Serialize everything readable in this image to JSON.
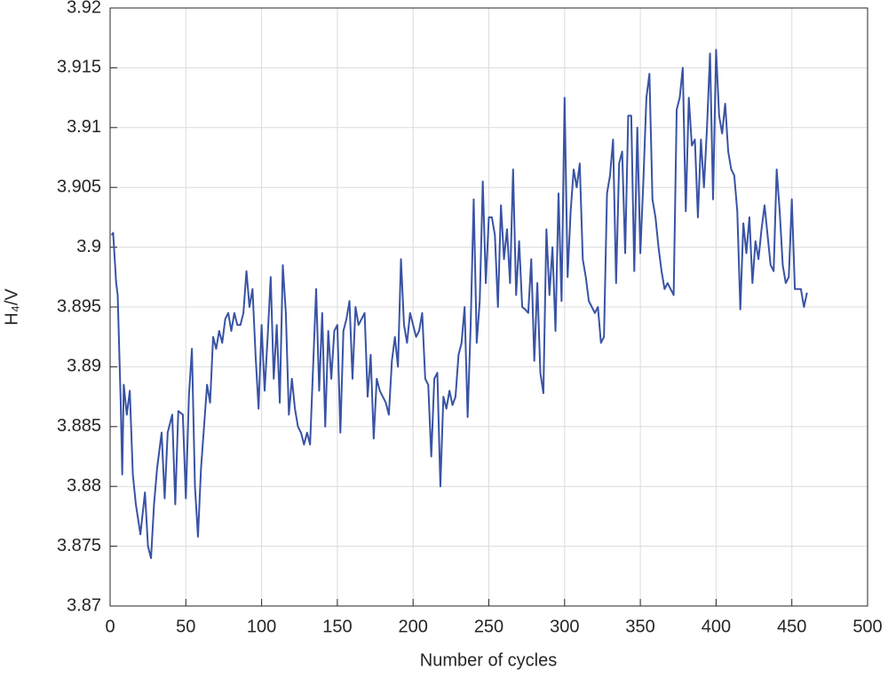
{
  "chart_data": {
    "type": "line",
    "xlabel": "Number of cycles",
    "ylabel": "H₄/V",
    "xlim": [
      0,
      500
    ],
    "xticks": [
      0,
      50,
      100,
      150,
      200,
      250,
      300,
      350,
      400,
      450,
      500
    ],
    "ylim": [
      3.87,
      3.92
    ],
    "yticks": [
      3.87,
      3.875,
      3.88,
      3.885,
      3.89,
      3.895,
      3.9,
      3.905,
      3.91,
      3.915,
      3.92
    ],
    "grid": true,
    "series": [
      {
        "color": "#3953a4",
        "x": [
          1,
          2,
          4,
          5,
          7,
          8,
          9,
          11,
          13,
          15,
          17,
          20,
          23,
          25,
          27,
          29,
          31,
          34,
          36,
          38,
          41,
          43,
          45,
          48,
          50,
          52,
          54,
          56,
          58,
          60,
          62,
          64,
          66,
          68,
          70,
          72,
          74,
          76,
          78,
          80,
          82,
          84,
          86,
          88,
          90,
          92,
          94,
          96,
          98,
          100,
          102,
          104,
          106,
          108,
          110,
          112,
          114,
          116,
          118,
          120,
          122,
          124,
          126,
          128,
          130,
          132,
          134,
          136,
          138,
          140,
          142,
          144,
          146,
          148,
          150,
          152,
          154,
          156,
          158,
          160,
          162,
          164,
          166,
          168,
          170,
          172,
          174,
          176,
          178,
          180,
          182,
          184,
          186,
          188,
          190,
          192,
          194,
          196,
          198,
          200,
          202,
          204,
          206,
          208,
          210,
          212,
          214,
          216,
          218,
          220,
          222,
          224,
          226,
          228,
          230,
          232,
          234,
          236,
          238,
          240,
          242,
          244,
          246,
          248,
          250,
          252,
          254,
          256,
          258,
          260,
          262,
          264,
          266,
          268,
          270,
          272,
          274,
          276,
          278,
          280,
          282,
          284,
          286,
          288,
          290,
          292,
          294,
          296,
          298,
          300,
          302,
          304,
          306,
          308,
          310,
          312,
          314,
          316,
          318,
          320,
          322,
          324,
          326,
          328,
          330,
          332,
          334,
          336,
          338,
          340,
          342,
          344,
          346,
          348,
          350,
          352,
          354,
          356,
          358,
          360,
          362,
          364,
          366,
          368,
          370,
          372,
          374,
          376,
          378,
          380,
          382,
          384,
          386,
          388,
          390,
          392,
          394,
          396,
          398,
          400,
          402,
          404,
          406,
          408,
          410,
          412,
          414,
          416,
          418,
          420,
          422,
          424,
          426,
          428,
          430,
          432,
          434,
          436,
          438,
          440,
          442,
          444,
          446,
          448,
          450,
          452,
          454,
          456,
          458,
          460
        ],
        "values": [
          3.901,
          3.9012,
          3.897,
          3.896,
          3.887,
          3.881,
          3.8885,
          3.886,
          3.888,
          3.881,
          3.8785,
          3.876,
          3.8795,
          3.875,
          3.874,
          3.8785,
          3.8815,
          3.8845,
          3.879,
          3.8845,
          3.886,
          3.8785,
          3.8863,
          3.886,
          3.879,
          3.8875,
          3.8915,
          3.88,
          3.8758,
          3.8815,
          3.885,
          3.8885,
          3.887,
          3.8925,
          3.8915,
          3.893,
          3.892,
          3.894,
          3.8945,
          3.893,
          3.8945,
          3.8935,
          3.8935,
          3.8945,
          3.898,
          3.895,
          3.8965,
          3.891,
          3.8865,
          3.8935,
          3.888,
          3.8925,
          3.8975,
          3.889,
          3.8935,
          3.887,
          3.8985,
          3.8945,
          3.886,
          3.889,
          3.8865,
          3.885,
          3.8845,
          3.8835,
          3.8845,
          3.8835,
          3.89,
          3.8965,
          3.888,
          3.8945,
          3.885,
          3.893,
          3.889,
          3.893,
          3.8935,
          3.8845,
          3.893,
          3.894,
          3.8955,
          3.889,
          3.895,
          3.8935,
          3.894,
          3.8945,
          3.8875,
          3.891,
          3.884,
          3.889,
          3.888,
          3.8875,
          3.887,
          3.886,
          3.8905,
          3.8925,
          3.89,
          3.899,
          3.8935,
          3.892,
          3.8945,
          3.8935,
          3.8925,
          3.893,
          3.8945,
          3.889,
          3.8885,
          3.8825,
          3.889,
          3.8895,
          3.88,
          3.8875,
          3.8865,
          3.888,
          3.8868,
          3.8875,
          3.891,
          3.892,
          3.895,
          3.8858,
          3.8935,
          3.904,
          3.892,
          3.8955,
          3.9055,
          3.897,
          3.9025,
          3.9025,
          3.901,
          3.895,
          3.9035,
          3.899,
          3.9015,
          3.897,
          3.9065,
          3.896,
          3.9005,
          3.895,
          3.8948,
          3.8945,
          3.899,
          3.8905,
          3.897,
          3.8895,
          3.8878,
          3.9015,
          3.896,
          3.9,
          3.893,
          3.9045,
          3.8955,
          3.9125,
          3.8975,
          3.903,
          3.9065,
          3.905,
          3.907,
          3.899,
          3.8975,
          3.8955,
          3.895,
          3.8945,
          3.895,
          3.892,
          3.8925,
          3.9045,
          3.906,
          3.909,
          3.897,
          3.907,
          3.908,
          3.8995,
          3.911,
          3.911,
          3.898,
          3.91,
          3.8995,
          3.9055,
          3.9125,
          3.9145,
          3.904,
          3.9025,
          3.9,
          3.898,
          3.8965,
          3.897,
          3.8965,
          3.896,
          3.9115,
          3.9125,
          3.915,
          3.903,
          3.9125,
          3.9085,
          3.909,
          3.9025,
          3.909,
          3.905,
          3.91,
          3.9162,
          3.904,
          3.9165,
          3.911,
          3.9095,
          3.912,
          3.908,
          3.9065,
          3.906,
          3.903,
          3.8948,
          3.902,
          3.8995,
          3.9025,
          3.897,
          3.9005,
          3.899,
          3.9015,
          3.9035,
          3.901,
          3.8985,
          3.898,
          3.9065,
          3.903,
          3.8985,
          3.897,
          3.8975,
          3.904,
          3.8965,
          3.8965,
          3.8965,
          3.895,
          3.8962
        ]
      }
    ]
  }
}
